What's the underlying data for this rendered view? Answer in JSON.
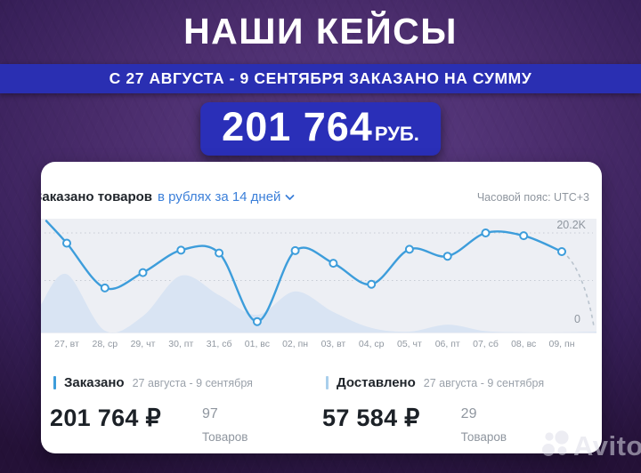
{
  "hero": {
    "title": "НАШИ КЕЙСЫ",
    "banner": "С 27 АВГУСТА - 9 СЕНТЯБРЯ ЗАКАЗАНО НА СУММУ",
    "badge_amount": "201 764",
    "badge_currency": "РУБ."
  },
  "card": {
    "header": {
      "title": "Заказано товаров",
      "filter": "в рублях за 14 дней",
      "timezone": "Часовой пояс: UTC+3"
    },
    "legend": [
      {
        "name": "Заказано",
        "range": "27 августа - 9 сентября",
        "amount": "201 764 ₽",
        "count": "97",
        "unit": "Товаров",
        "color": "#3d9ddb"
      },
      {
        "name": "Доставлено",
        "range": "27 августа - 9 сентября",
        "amount": "57 584 ₽",
        "count": "29",
        "unit": "Товаров",
        "color": "#a9cfec"
      }
    ]
  },
  "chart_data": {
    "type": "line",
    "title": "Заказано товаров в рублях за 14 дней",
    "x_labels": [
      "27, вт",
      "28, ср",
      "29, чт",
      "30, пт",
      "31, сб",
      "01, вс",
      "02, пн",
      "03, вт",
      "04, ср",
      "05, чт",
      "06, пт",
      "07, сб",
      "08, вс",
      "09, пн"
    ],
    "ylim": [
      0,
      20.2
    ],
    "y_max_label": "20.2K",
    "y_min_label": "0",
    "gridlines_k": [
      20.2,
      10
    ],
    "grid": "dotted",
    "legend_position": "below",
    "series": [
      {
        "name": "Заказано",
        "type": "line",
        "color": "#3d9ddb",
        "values_k": [
          18,
          8.4,
          11.7,
          16.5,
          15.9,
          1.2,
          16.4,
          13.7,
          9.2,
          16.7,
          15.2,
          20.2,
          19.6,
          16.2
        ],
        "edge_left_k": 22.8,
        "dashed_tail_to_zero": true
      },
      {
        "name": "Доставлено",
        "type": "area",
        "color": "#d9e4f3",
        "values_k": [
          12.5,
          0.4,
          3.5,
          12.2,
          8,
          3.8,
          8.8,
          4.4,
          1,
          0.2,
          1.7,
          0.3,
          0.05,
          0.05
        ],
        "edge_left_k": 6,
        "edge_right_k": 0.2
      }
    ],
    "plot_bg": "#edeff4",
    "gridline_color": "#c6cbd4",
    "axis_label_color": "#9198a1"
  },
  "watermark": {
    "text": "Avito"
  }
}
